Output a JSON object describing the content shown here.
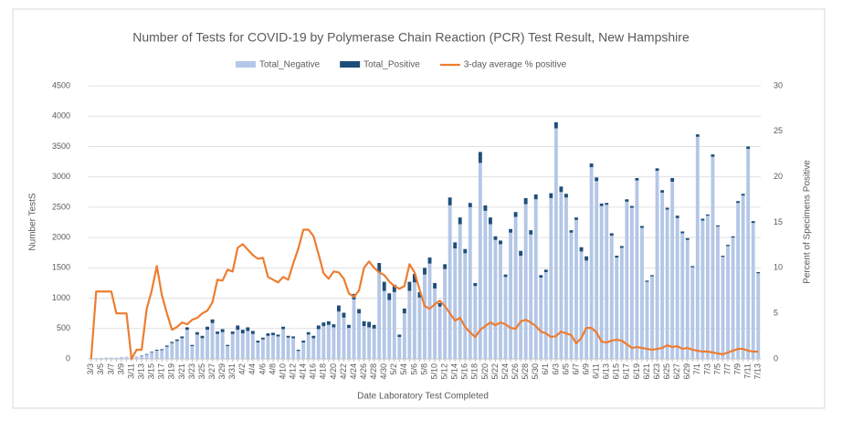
{
  "chart_data": {
    "type": "bar",
    "title": "Number of Tests for COVID-19 by Polymerase Chain Reaction (PCR) Test Result, New Hampshire",
    "x_label": "Date Laboratory Test Completed",
    "y_label": "Number TestS",
    "y2_label": "Percent of Specimens Positive",
    "legend": "top",
    "grid": true,
    "stacked": true,
    "categories": [
      "3/3",
      null,
      "3/5",
      null,
      "3/7",
      null,
      "3/9",
      null,
      "3/11",
      null,
      "3/13",
      null,
      "3/15",
      null,
      "3/17",
      null,
      "3/19",
      null,
      "3/21",
      null,
      "3/23",
      null,
      "3/25",
      null,
      "3/27",
      null,
      "3/29",
      null,
      "3/31",
      null,
      "4/2",
      null,
      "4/4",
      null,
      "4/6",
      null,
      "4/8",
      null,
      "4/10",
      null,
      "4/12",
      null,
      "4/14",
      null,
      "4/16",
      null,
      "4/18",
      null,
      "4/20",
      null,
      "4/22",
      null,
      "4/24",
      null,
      "4/26",
      null,
      "4/28",
      null,
      "4/30",
      null,
      "5/2",
      null,
      "5/4",
      null,
      "5/6",
      null,
      "5/8",
      null,
      "5/10",
      null,
      "5/12",
      null,
      "5/14",
      null,
      "5/16",
      null,
      "5/18",
      null,
      "5/20",
      null,
      "5/22",
      null,
      "5/24",
      null,
      "5/26",
      null,
      "5/28",
      null,
      "5/30",
      null,
      "6/1",
      null,
      "6/3",
      null,
      "6/5",
      null,
      "6/7",
      null,
      "6/9",
      null,
      "6/11",
      null,
      "6/13",
      null,
      "6/15",
      null,
      "6/17",
      null,
      "6/19",
      null,
      "6/21",
      null,
      "6/23",
      null,
      "6/25",
      null,
      "6/27",
      null,
      "6/29",
      null,
      "7/1",
      null,
      "7/3",
      null,
      "7/5",
      null,
      "7/7",
      null,
      "7/9",
      null,
      "7/11",
      null,
      "7/13"
    ],
    "ylim": [
      0,
      4500
    ],
    "yticks": [
      0,
      500,
      1000,
      1500,
      2000,
      2500,
      3000,
      3500,
      4000,
      4500
    ],
    "y2lim": [
      0,
      30
    ],
    "y2ticks": [
      0,
      5,
      10,
      15,
      20,
      25,
      30
    ],
    "series": [
      {
        "name": "Total_Negative",
        "type": "bar",
        "color": "#b4c7e7",
        "values": [
          5,
          10,
          15,
          20,
          20,
          20,
          30,
          35,
          40,
          40,
          55,
          70,
          110,
          135,
          145,
          200,
          260,
          295,
          340,
          480,
          210,
          400,
          340,
          480,
          590,
          410,
          440,
          210,
          410,
          480,
          420,
          460,
          410,
          270,
          320,
          380,
          390,
          370,
          490,
          350,
          340,
          130,
          270,
          400,
          340,
          490,
          540,
          560,
          520,
          780,
          680,
          510,
          980,
          750,
          540,
          520,
          500,
          1430,
          1120,
          970,
          1100,
          360,
          750,
          1120,
          1260,
          1010,
          1390,
          1570,
          1160,
          860,
          1480,
          2530,
          1820,
          2220,
          1740,
          2500,
          1200,
          3230,
          2440,
          2220,
          1960,
          1890,
          1350,
          2080,
          2340,
          1700,
          2550,
          2050,
          2630,
          1340,
          1430,
          2650,
          3800,
          2750,
          2660,
          2080,
          2290,
          1770,
          1620,
          3160,
          2930,
          2520,
          2540,
          2030,
          1670,
          1830,
          2590,
          2490,
          2940,
          2160,
          1270,
          1360,
          3100,
          2740,
          2460,
          2920,
          2320,
          2070,
          1960,
          1510,
          3660,
          2280,
          2360,
          3330,
          2180,
          1680,
          1860,
          2000,
          2570,
          2690,
          3460,
          2240,
          1410
        ]
      },
      {
        "name": "Total_Positive",
        "type": "bar",
        "color": "#1f4e79",
        "values": [
          0,
          0,
          0,
          0,
          0,
          0,
          0,
          0,
          0,
          0,
          5,
          10,
          10,
          15,
          15,
          20,
          20,
          25,
          30,
          40,
          20,
          40,
          40,
          50,
          60,
          40,
          50,
          20,
          40,
          70,
          60,
          60,
          50,
          30,
          30,
          40,
          40,
          30,
          40,
          30,
          30,
          20,
          30,
          40,
          40,
          60,
          60,
          60,
          50,
          100,
          80,
          50,
          90,
          70,
          80,
          90,
          60,
          150,
          150,
          110,
          120,
          40,
          80,
          150,
          140,
          90,
          110,
          100,
          90,
          60,
          80,
          130,
          100,
          110,
          70,
          70,
          50,
          180,
          90,
          110,
          60,
          60,
          40,
          60,
          80,
          80,
          100,
          70,
          80,
          40,
          40,
          80,
          100,
          90,
          60,
          40,
          40,
          70,
          70,
          60,
          60,
          40,
          30,
          40,
          30,
          30,
          40,
          30,
          40,
          30,
          20,
          20,
          40,
          40,
          30,
          60,
          40,
          30,
          30,
          20,
          40,
          30,
          20,
          40,
          20,
          20,
          20,
          20,
          30,
          30,
          40,
          30,
          20
        ]
      },
      {
        "name": "3-day average % positive",
        "type": "line",
        "axis": "y2",
        "color": "#ed7d31",
        "values": [
          0,
          7.4,
          7.4,
          7.4,
          7.4,
          5,
          5,
          5,
          0,
          1,
          1,
          5.5,
          7.5,
          10.2,
          7,
          5,
          3.2,
          3.5,
          4,
          3.8,
          4.3,
          4.5,
          5,
          5.3,
          6.2,
          8.7,
          8.6,
          9.8,
          9.6,
          12.2,
          12.6,
          12,
          11.4,
          11,
          11.1,
          9,
          8.7,
          8.4,
          9,
          8.7,
          10.5,
          12.1,
          14.2,
          14.2,
          13.5,
          11.5,
          9.4,
          8.8,
          9.6,
          9.5,
          8.8,
          7.2,
          6.8,
          7.5,
          10,
          10.7,
          10,
          9.5,
          9.2,
          8.5,
          8,
          7.7,
          8,
          10.4,
          9.5,
          7.6,
          5.8,
          5.5,
          6,
          6.4,
          5.8,
          5,
          4.2,
          4.5,
          3.5,
          2.9,
          2.4,
          3.2,
          3.6,
          4,
          3.7,
          4,
          3.8,
          3.4,
          3.3,
          4.1,
          4.3,
          4,
          3.6,
          3,
          2.8,
          2.4,
          2.5,
          3,
          2.8,
          2.6,
          1.7,
          2.3,
          3.4,
          3.4,
          2.9,
          1.9,
          1.8,
          2,
          2.1,
          2,
          1.6,
          1.2,
          1.3,
          1.2,
          1.1,
          1,
          1.1,
          1.2,
          1.5,
          1.3,
          1.4,
          1.1,
          1.2,
          1,
          0.9,
          0.8,
          0.8,
          0.7,
          0.6,
          0.5,
          0.7,
          0.9,
          1.1,
          1.1,
          0.9,
          0.8,
          0.8
        ]
      }
    ]
  }
}
